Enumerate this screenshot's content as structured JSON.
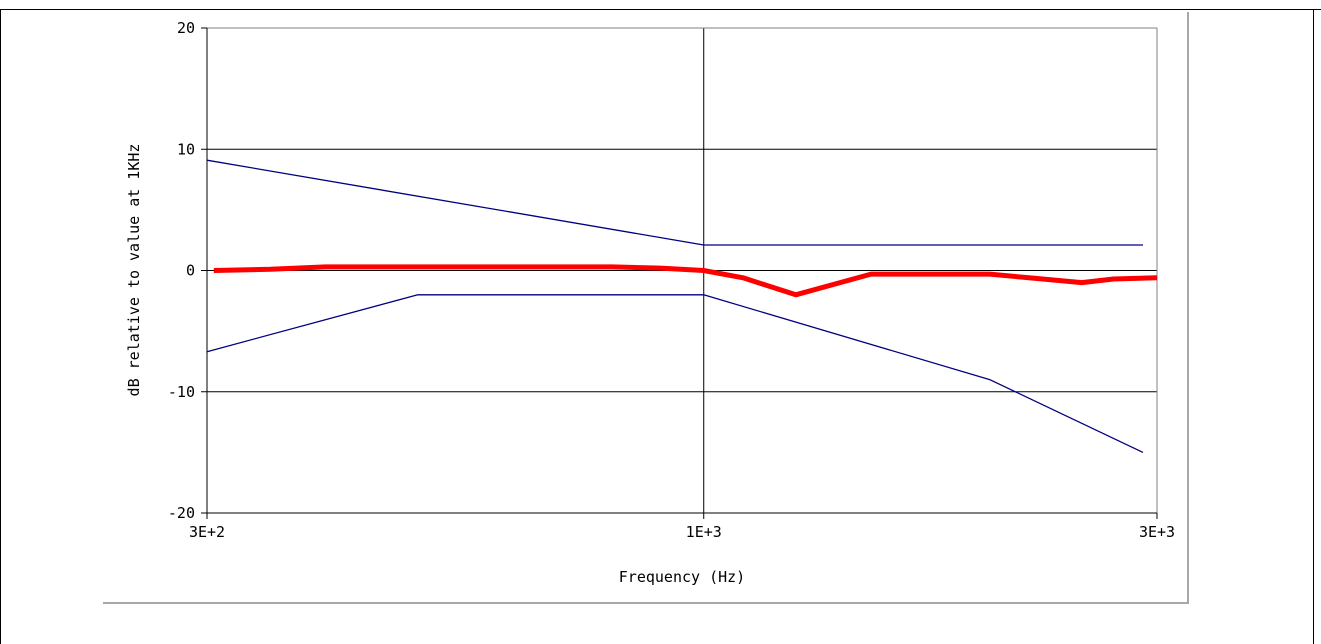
{
  "chart_data": {
    "type": "line",
    "title": "",
    "xlabel": "Frequency (Hz)",
    "ylabel": "dB relative to value at 1KHz",
    "x_scale": "log",
    "xlim": [
      300,
      3000
    ],
    "ylim": [
      -20,
      20
    ],
    "x_ticks": [
      {
        "value": 300,
        "label": "3E+2"
      },
      {
        "value": 1000,
        "label": "1E+3"
      },
      {
        "value": 3000,
        "label": "3E+3"
      }
    ],
    "y_ticks": [
      {
        "value": 20,
        "label": "20"
      },
      {
        "value": 10,
        "label": "10"
      },
      {
        "value": 0,
        "label": "0"
      },
      {
        "value": -10,
        "label": "-10"
      },
      {
        "value": -20,
        "label": "-20"
      }
    ],
    "grid": {
      "horizontal": [
        10,
        0,
        -10
      ],
      "vertical": [
        1000
      ]
    },
    "series": [
      {
        "color": "#000080",
        "role": "upper-limit",
        "x": [
          300,
          1000,
          2900
        ],
        "y": [
          9.1,
          2.1,
          2.1
        ]
      },
      {
        "color": "#000080",
        "role": "lower-limit",
        "x": [
          300,
          500,
          1000,
          2000,
          2900
        ],
        "y": [
          -6.7,
          -2.0,
          -2.0,
          -9.0,
          -15.0
        ]
      },
      {
        "color": "#ff0000",
        "role": "measured",
        "x": [
          305,
          350,
          400,
          800,
          900,
          1000,
          1100,
          1250,
          1500,
          2000,
          2200,
          2500,
          2700,
          3000
        ],
        "y": [
          0.0,
          0.1,
          0.3,
          0.3,
          0.2,
          0.0,
          -0.6,
          -2.0,
          -0.3,
          -0.3,
          -0.6,
          -1.0,
          -0.7,
          -0.6
        ]
      }
    ]
  }
}
